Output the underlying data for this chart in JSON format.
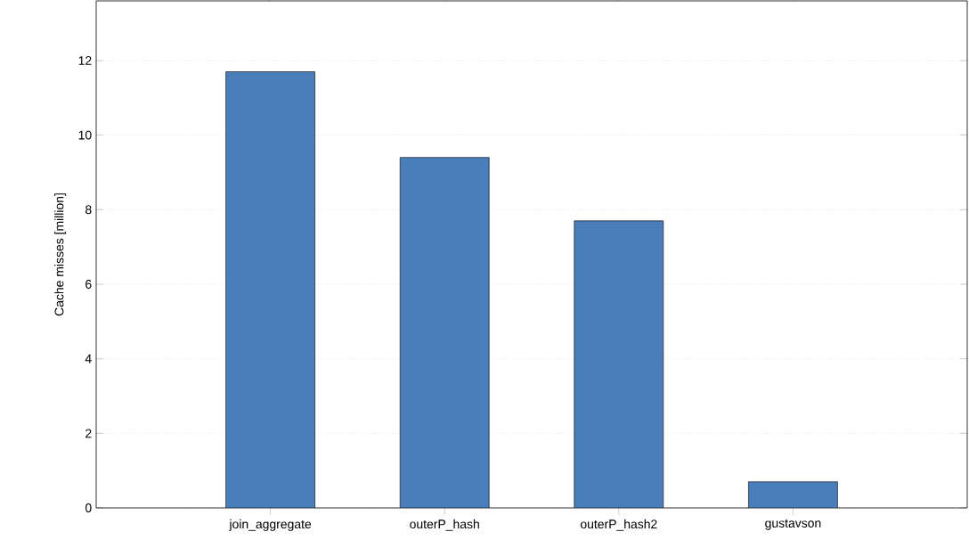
{
  "chart_data": {
    "type": "bar",
    "ylabel": "Cache misses [million]",
    "categories": [
      "join_aggregate",
      "outerP_hash",
      "outerP_hash2",
      "gustavson"
    ],
    "values": [
      11.7,
      9.4,
      7.7,
      0.7
    ],
    "color": "#4a7ebb",
    "ylim": [
      0,
      13.6
    ],
    "yticks": [
      0,
      2,
      4,
      6,
      8,
      10,
      12
    ],
    "grid": "y"
  }
}
